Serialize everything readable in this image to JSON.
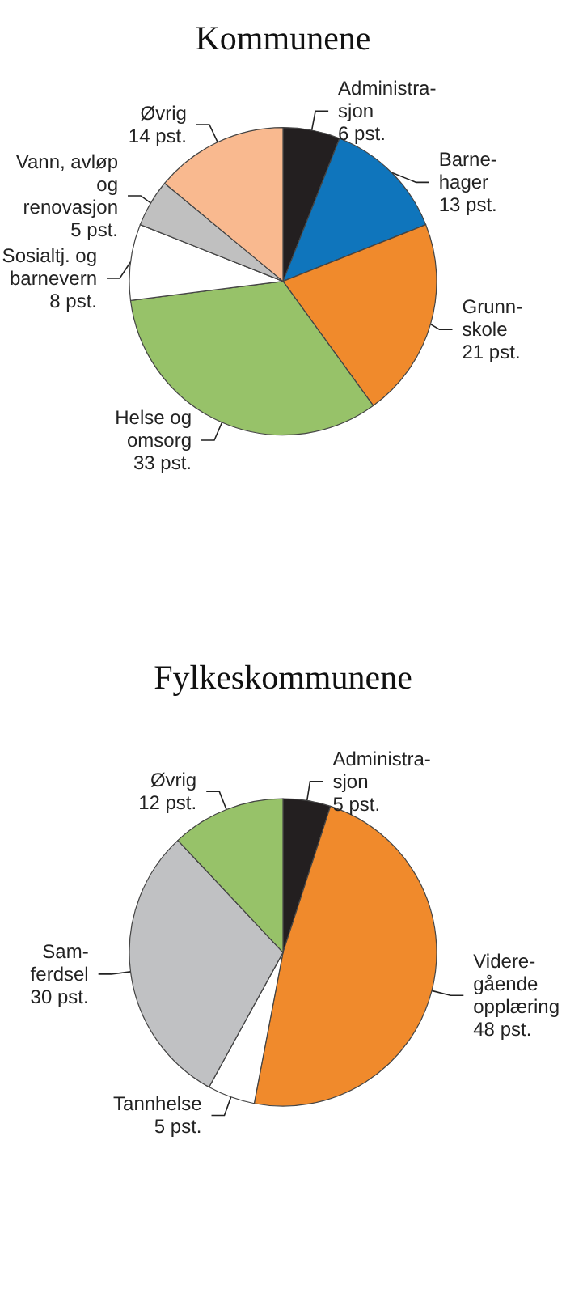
{
  "chart_data": [
    {
      "type": "pie",
      "title": "Kommunene",
      "categories": [
        "Administra-\nsjon",
        "Barne-\nhager",
        "Grunn-\nskole",
        "Helse og\nomsorg",
        "Sosialtj. og\nbarnevern",
        "Vann, avløp\nog\nrenovasjon",
        "Øvrig"
      ],
      "values": [
        6,
        13,
        21,
        33,
        8,
        5,
        14
      ],
      "value_labels": [
        "6 pst.",
        "13 pst.",
        "21 pst.",
        "33 pst.",
        "8 pst.",
        "5 pst.",
        "14 pst."
      ],
      "colors": [
        "#231f20",
        "#0f75bc",
        "#f08a2c",
        "#97c269",
        "#ffffff",
        "#c0c0c0",
        "#f9b98f"
      ]
    },
    {
      "type": "pie",
      "title": "Fylkeskommunene",
      "categories": [
        "Administra-\nsjon",
        "Videre-\ngående\nopplæring",
        "Tannhelse",
        "Sam-\nferdsel",
        "Øvrig"
      ],
      "values": [
        5,
        48,
        5,
        30,
        12
      ],
      "value_labels": [
        "5 pst.",
        "48 pst.",
        "5 pst.",
        "30 pst.",
        "12 pst."
      ],
      "colors": [
        "#231f20",
        "#f08a2c",
        "#ffffff",
        "#c0c1c3",
        "#97c269"
      ]
    }
  ]
}
